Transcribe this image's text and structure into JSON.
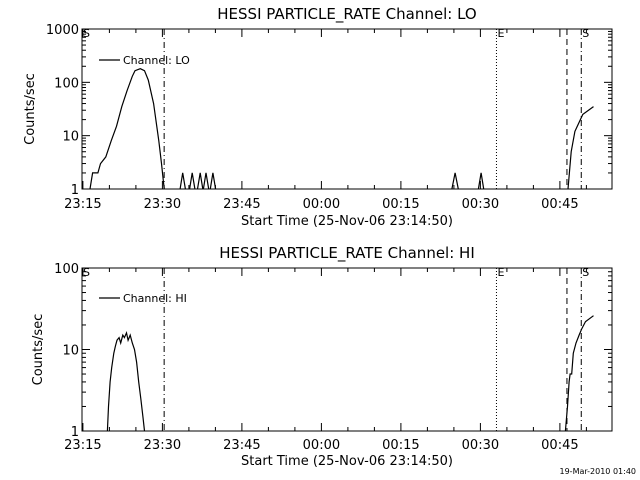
{
  "timestamp": "19-Mar-2010 01:40",
  "chart_data": [
    {
      "type": "line",
      "title": "HESSI PARTICLE_RATE Channel: LO",
      "xlabel": "Start Time (25-Nov-06 23:14:50)",
      "ylabel": "Counts/sec",
      "x_tick_labels": [
        "23:15",
        "23:30",
        "23:45",
        "00:00",
        "00:15",
        "00:30",
        "00:45"
      ],
      "x_ticks_min": [
        0.17,
        15.17,
        30.17,
        45.17,
        60.17,
        75.17,
        90.17
      ],
      "xlim": [
        0,
        100
      ],
      "y_scale": "log",
      "ylim": [
        1,
        1000
      ],
      "y_tick_labels": [
        "1",
        "10",
        "100",
        "1000"
      ],
      "y_ticks": [
        1,
        10,
        100,
        1000
      ],
      "legend": "Channel: LO",
      "legend_position": "top-left",
      "markers": [
        {
          "label": "S",
          "style": "solid",
          "x": 0
        },
        {
          "label": "",
          "style": "dash-dot",
          "x": 15.5
        },
        {
          "label": "E",
          "style": "dotted",
          "x": 78.2
        },
        {
          "label": "",
          "style": "dashed",
          "x": 91.5
        },
        {
          "label": "S",
          "style": "dash-dot",
          "x": 94.2
        }
      ],
      "series": [
        {
          "name": "Channel: LO",
          "segments": [
            [
              [
                1.5,
                1
              ],
              [
                2.0,
                2
              ],
              [
                3.0,
                2
              ],
              [
                3.5,
                3
              ],
              [
                4.5,
                4
              ],
              [
                5.5,
                8
              ],
              [
                6.5,
                15
              ],
              [
                7.5,
                35
              ],
              [
                8.5,
                70
              ],
              [
                9.5,
                130
              ],
              [
                10.0,
                165
              ],
              [
                11.0,
                180
              ],
              [
                11.8,
                165
              ],
              [
                12.5,
                110
              ],
              [
                13.5,
                40
              ],
              [
                14.5,
                8
              ],
              [
                15.0,
                3
              ],
              [
                15.5,
                1
              ]
            ],
            [
              [
                18.5,
                1
              ],
              [
                19,
                2
              ],
              [
                19.5,
                1
              ]
            ],
            [
              [
                20.3,
                1
              ],
              [
                20.8,
                2
              ],
              [
                21.3,
                1
              ]
            ],
            [
              [
                21.8,
                1
              ],
              [
                22.3,
                2
              ],
              [
                22.8,
                1
              ]
            ],
            [
              [
                22.9,
                1
              ],
              [
                23.4,
                2
              ],
              [
                23.9,
                1
              ]
            ],
            [
              [
                24.2,
                1
              ],
              [
                24.7,
                2
              ],
              [
                25.2,
                1
              ]
            ],
            [
              [
                69.8,
                1
              ],
              [
                70.4,
                2
              ],
              [
                71.0,
                1
              ]
            ],
            [
              [
                74.8,
                1
              ],
              [
                75.3,
                2
              ],
              [
                75.8,
                1
              ]
            ],
            [
              [
                91.7,
                1
              ],
              [
                92.3,
                5
              ],
              [
                93.0,
                12
              ],
              [
                94.5,
                25
              ],
              [
                96.5,
                35
              ]
            ]
          ]
        }
      ]
    },
    {
      "type": "line",
      "title": "HESSI PARTICLE_RATE Channel: HI",
      "xlabel": "Start Time (25-Nov-06 23:14:50)",
      "ylabel": "Counts/sec",
      "x_tick_labels": [
        "23:15",
        "23:30",
        "23:45",
        "00:00",
        "00:15",
        "00:30",
        "00:45"
      ],
      "x_ticks_min": [
        0.17,
        15.17,
        30.17,
        45.17,
        60.17,
        75.17,
        90.17
      ],
      "xlim": [
        0,
        100
      ],
      "y_scale": "log",
      "ylim": [
        1,
        100
      ],
      "y_tick_labels": [
        "1",
        "10",
        "100"
      ],
      "y_ticks": [
        1,
        10,
        100
      ],
      "legend": "Channel: HI",
      "legend_position": "top-left",
      "markers": [
        {
          "label": "S",
          "style": "solid",
          "x": 0
        },
        {
          "label": "",
          "style": "dash-dot",
          "x": 15.5
        },
        {
          "label": "E",
          "style": "dotted",
          "x": 78.2
        },
        {
          "label": "",
          "style": "dashed",
          "x": 91.5
        },
        {
          "label": "S",
          "style": "dash-dot",
          "x": 94.2
        }
      ],
      "series": [
        {
          "name": "Channel: HI",
          "segments": [
            [
              [
                4.8,
                1
              ],
              [
                5.0,
                2
              ],
              [
                5.3,
                4
              ],
              [
                5.6,
                6
              ],
              [
                6.0,
                9
              ],
              [
                6.3,
                11
              ],
              [
                6.6,
                13
              ],
              [
                7.0,
                14
              ],
              [
                7.3,
                12
              ],
              [
                7.7,
                15
              ],
              [
                8.0,
                14
              ],
              [
                8.4,
                16
              ],
              [
                8.7,
                13
              ],
              [
                9.1,
                15
              ],
              [
                9.5,
                12
              ],
              [
                9.9,
                10
              ],
              [
                10.3,
                7
              ],
              [
                10.7,
                4
              ],
              [
                11.1,
                2.5
              ],
              [
                11.5,
                1.5
              ],
              [
                11.8,
                1
              ]
            ],
            [
              [
                91.2,
                1
              ],
              [
                91.6,
                2
              ],
              [
                91.9,
                4
              ],
              [
                92.1,
                5
              ],
              [
                92.4,
                5
              ],
              [
                92.7,
                9
              ],
              [
                93.2,
                12
              ],
              [
                93.8,
                15
              ],
              [
                94.3,
                18
              ],
              [
                95.0,
                22
              ],
              [
                96.5,
                26
              ]
            ]
          ]
        }
      ]
    }
  ]
}
